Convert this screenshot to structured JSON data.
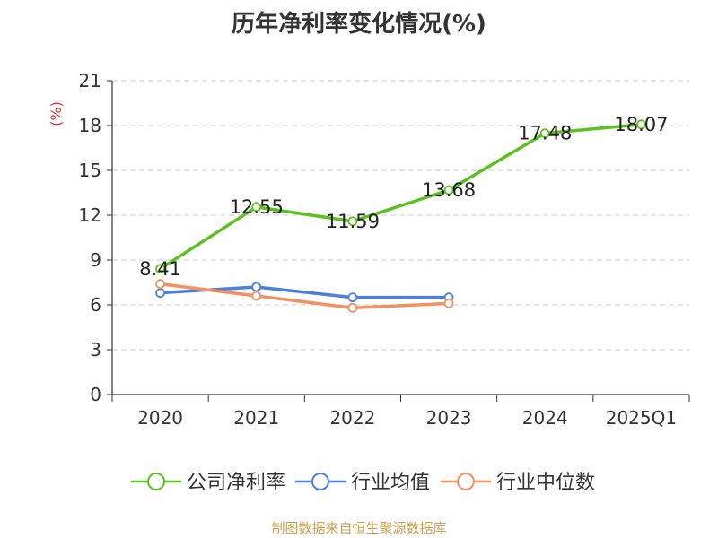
{
  "chart_data": {
    "type": "line",
    "title": "历年净利率变化情况(%)",
    "ylabel": "(%)",
    "xlabel": "",
    "categories": [
      "2020",
      "2021",
      "2022",
      "2023",
      "2024",
      "2025Q1"
    ],
    "ylim": [
      0,
      21
    ],
    "yticks": [
      0,
      3,
      6,
      9,
      12,
      15,
      18,
      21
    ],
    "grid": true,
    "legend_position": "bottom",
    "series": [
      {
        "name": "公司净利率",
        "color": "#5cc021",
        "values": [
          8.41,
          12.55,
          11.59,
          13.68,
          17.48,
          18.07
        ],
        "show_labels": true
      },
      {
        "name": "行业均值",
        "color": "#4b7fe0",
        "values": [
          6.8,
          7.2,
          6.5,
          6.5,
          null,
          null
        ],
        "show_labels": false
      },
      {
        "name": "行业中位数",
        "color": "#f39060",
        "values": [
          7.4,
          6.6,
          5.8,
          6.1,
          null,
          null
        ],
        "show_labels": false
      }
    ]
  },
  "footer": {
    "source": "制图数据来自恒生聚源数据库"
  }
}
